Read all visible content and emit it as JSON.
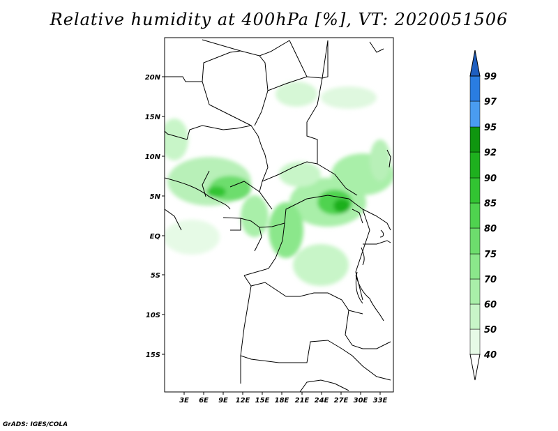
{
  "title": "Relative humidity at 400hPa [%], VT: 2020051506",
  "credit": "GrADS: IGES/COLA",
  "map": {
    "lon_range": [
      0,
      35
    ],
    "lat_range": [
      -20,
      25
    ],
    "lat_ticks": [
      "20N",
      "15N",
      "10N",
      "5N",
      "EQ",
      "5S",
      "10S",
      "15S"
    ],
    "lon_ticks": [
      "3E",
      "6E",
      "9E",
      "12E",
      "15E",
      "18E",
      "21E",
      "24E",
      "27E",
      "30E",
      "33E"
    ]
  },
  "colorbar": {
    "levels": [
      "40",
      "50",
      "60",
      "70",
      "75",
      "80",
      "85",
      "90",
      "92",
      "95",
      "97",
      "99"
    ],
    "colors": [
      "#e6fae6",
      "#c8f5c8",
      "#a9efa9",
      "#8be78b",
      "#6ddd6d",
      "#4fd34f",
      "#32c432",
      "#1eb01e",
      "#0f960f",
      "#4a9cf0",
      "#2a7de1",
      "#1f5fc0"
    ]
  }
}
